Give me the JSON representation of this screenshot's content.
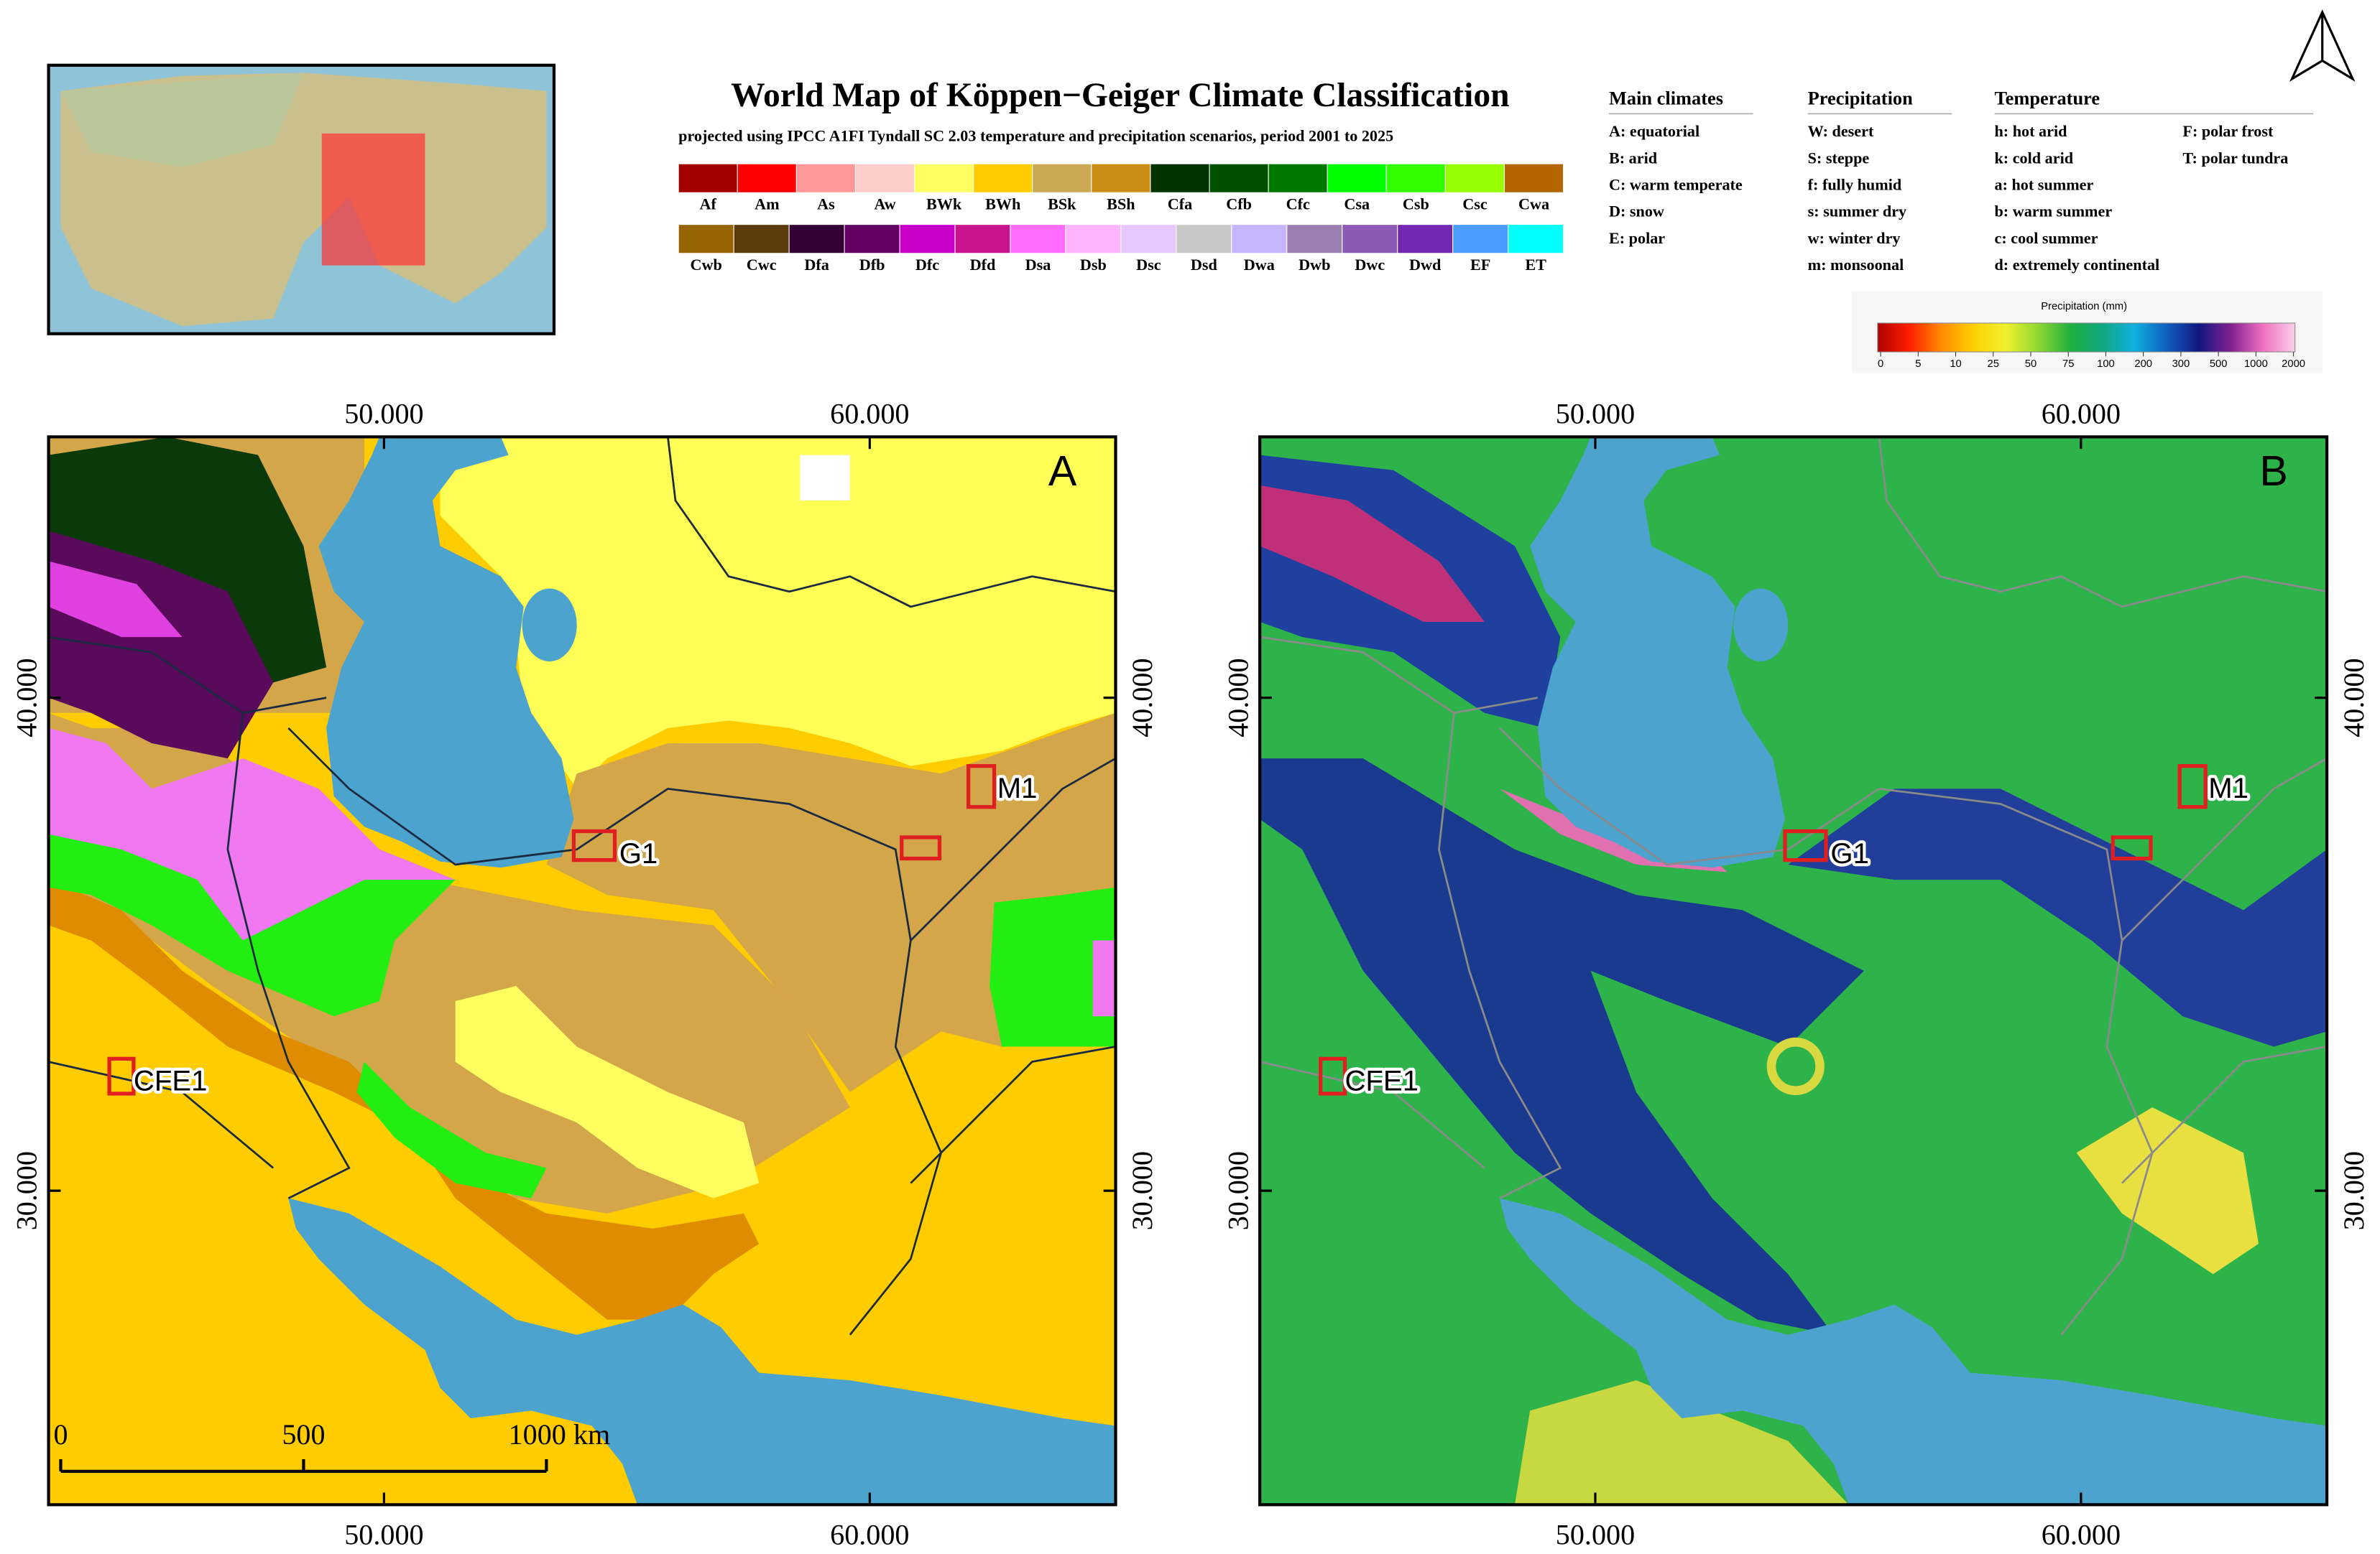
{
  "header": {
    "title": "World Map of Köppen−Geiger Climate Classification",
    "subtitle": "projected using IPCC A1FI Tyndall SC 2.03 temperature and precipitation scenarios, period 2001 to 2025"
  },
  "legend": {
    "rows": [
      [
        {
          "code": "Af",
          "color": "#A50000"
        },
        {
          "code": "Am",
          "color": "#FF0000"
        },
        {
          "code": "As",
          "color": "#FF9999"
        },
        {
          "code": "Aw",
          "color": "#FFCCCC"
        },
        {
          "code": "BWk",
          "color": "#FFFF64"
        },
        {
          "code": "BWh",
          "color": "#FFCC00"
        },
        {
          "code": "BSk",
          "color": "#CCAA54"
        },
        {
          "code": "BSh",
          "color": "#CC8D14"
        },
        {
          "code": "Cfa",
          "color": "#003300"
        },
        {
          "code": "Cfb",
          "color": "#005000"
        },
        {
          "code": "Cfc",
          "color": "#007800"
        },
        {
          "code": "Csa",
          "color": "#00FF00"
        },
        {
          "code": "Csb",
          "color": "#32FF00"
        },
        {
          "code": "Csc",
          "color": "#96FF00"
        },
        {
          "code": "Cwa",
          "color": "#B46400"
        }
      ],
      [
        {
          "code": "Cwb",
          "color": "#966400"
        },
        {
          "code": "Cwc",
          "color": "#5A3C0A"
        },
        {
          "code": "Dfa",
          "color": "#320032"
        },
        {
          "code": "Dfb",
          "color": "#640064"
        },
        {
          "code": "Dfc",
          "color": "#C800C8"
        },
        {
          "code": "Dfd",
          "color": "#C8148C"
        },
        {
          "code": "Dsa",
          "color": "#FF6DFF"
        },
        {
          "code": "Dsb",
          "color": "#FFB4FF"
        },
        {
          "code": "Dsc",
          "color": "#E6C8FF"
        },
        {
          "code": "Dsd",
          "color": "#C8C8C8"
        },
        {
          "code": "Dwa",
          "color": "#C8B4FF"
        },
        {
          "code": "Dwb",
          "color": "#9A7FB3"
        },
        {
          "code": "Dwc",
          "color": "#8C59B4"
        },
        {
          "code": "Dwd",
          "color": "#7328B4"
        },
        {
          "code": "EF",
          "color": "#4C9BFF"
        },
        {
          "code": "ET",
          "color": "#00FFFF"
        }
      ]
    ]
  },
  "key": {
    "columns": [
      {
        "title": "Main climates",
        "items": [
          "A: equatorial",
          "B: arid",
          "C: warm temperate",
          "D: snow",
          "E: polar"
        ]
      },
      {
        "title": "Precipitation",
        "items": [
          "W: desert",
          "S: steppe",
          "f: fully humid",
          "s: summer dry",
          "w: winter dry",
          "m: monsoonal"
        ]
      },
      {
        "title": "Temperature",
        "items": [
          "h: hot arid",
          "k: cold arid",
          "a: hot summer",
          "b: warm summer",
          "c: cool summer",
          "d: extremely continental"
        ]
      },
      {
        "title": null,
        "items": [
          "F: polar frost",
          "T: polar tundra"
        ]
      }
    ]
  },
  "colorbar": {
    "title": "Precipitation (mm)",
    "labels": [
      0,
      5,
      10,
      25,
      50,
      75,
      100,
      200,
      300,
      500,
      1000,
      2000
    ],
    "colors": [
      "#B00000",
      "#FF2000",
      "#FF8C00",
      "#FFD000",
      "#F0F030",
      "#90D830",
      "#20B040",
      "#10A880",
      "#10B0E0",
      "#1060C0",
      "#101880",
      "#802090",
      "#F070C0",
      "#F8D0E8"
    ]
  },
  "maps": {
    "x_ticks": [
      "50.000",
      "60.000"
    ],
    "y_ticks": [
      "40.000",
      "30.000"
    ],
    "scale_bar": [
      "0",
      "500",
      "1000 km"
    ],
    "panels": [
      {
        "label": "A",
        "sites": [
          "M1",
          "G1",
          "CFE1"
        ]
      },
      {
        "label": "B",
        "sites": [
          "M1",
          "G1",
          "CFE1"
        ]
      }
    ]
  }
}
